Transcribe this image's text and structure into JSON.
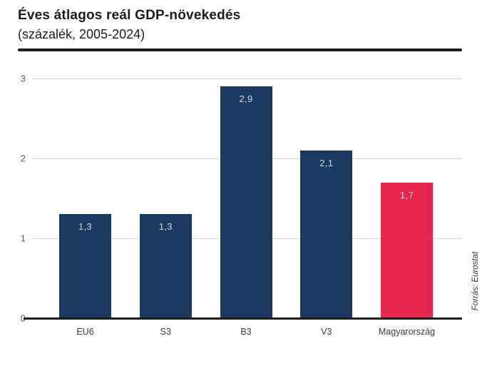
{
  "header": {
    "title": "Éves átlagos reál GDP-növekedés",
    "subtitle": "(százalék, 2005-2024)"
  },
  "source": "Forrás: Eurostat",
  "colors": {
    "bar_default": "#1C3A5F",
    "bar_highlight": "#E8274E",
    "grid": "#D8D8D8",
    "baseline": "#1D1D1B",
    "title_text": "#1D1D1B",
    "tick_text": "#5A5A5A"
  },
  "chart_data": {
    "type": "bar",
    "title": "Éves átlagos reál GDP-növekedés",
    "subtitle": "(százalék, 2005-2024)",
    "categories": [
      "EU6",
      "S3",
      "B3",
      "V3",
      "Magyarország"
    ],
    "values": [
      1.3,
      1.3,
      2.9,
      2.1,
      1.7
    ],
    "value_labels": [
      "1,3",
      "1,3",
      "2,9",
      "2,1",
      "1,7"
    ],
    "highlight_category": "Magyarország",
    "xlabel": "",
    "ylabel": "",
    "ylim": [
      0,
      3
    ],
    "yticks": [
      0,
      1,
      2,
      3
    ],
    "grid": true,
    "legend": false,
    "source": "Forrás: Eurostat"
  }
}
